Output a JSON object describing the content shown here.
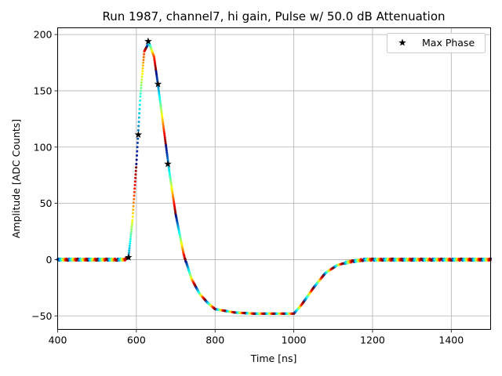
{
  "chart_data": {
    "type": "scatter",
    "title": "Run 1987, channel7, hi gain, Pulse w/ 50.0 dB Attenuation",
    "xlabel": "Time [ns]",
    "ylabel": "Amplitude [ADC Counts]",
    "xlim": [
      400,
      1500
    ],
    "ylim": [
      -62,
      206
    ],
    "xticks": [
      400,
      600,
      800,
      1000,
      1200,
      1400
    ],
    "yticks": [
      -50,
      0,
      50,
      100,
      150,
      200
    ],
    "grid": true,
    "legend": {
      "position": "top-right",
      "entries": [
        "Max Phase"
      ]
    },
    "pulse_profile": {
      "x": [
        400,
        500,
        570,
        580,
        590,
        600,
        610,
        620,
        632,
        645,
        655,
        670,
        685,
        700,
        720,
        740,
        760,
        780,
        800,
        850,
        900,
        950,
        1000,
        1020,
        1050,
        1080,
        1110,
        1140,
        1180,
        1250,
        1350,
        1500
      ],
      "y": [
        0,
        0,
        0,
        2,
        35,
        85,
        145,
        185,
        193,
        180,
        155,
        115,
        75,
        40,
        5,
        -17,
        -30,
        -38,
        -44,
        -47,
        -48,
        -48,
        -48,
        -40,
        -25,
        -12,
        -5,
        -2,
        0,
        0,
        0,
        0
      ]
    },
    "max_phase_points": [
      {
        "x": 580,
        "y": 2
      },
      {
        "x": 605,
        "y": 111
      },
      {
        "x": 630,
        "y": 194
      },
      {
        "x": 655,
        "y": 156
      },
      {
        "x": 680,
        "y": 85
      }
    ]
  }
}
